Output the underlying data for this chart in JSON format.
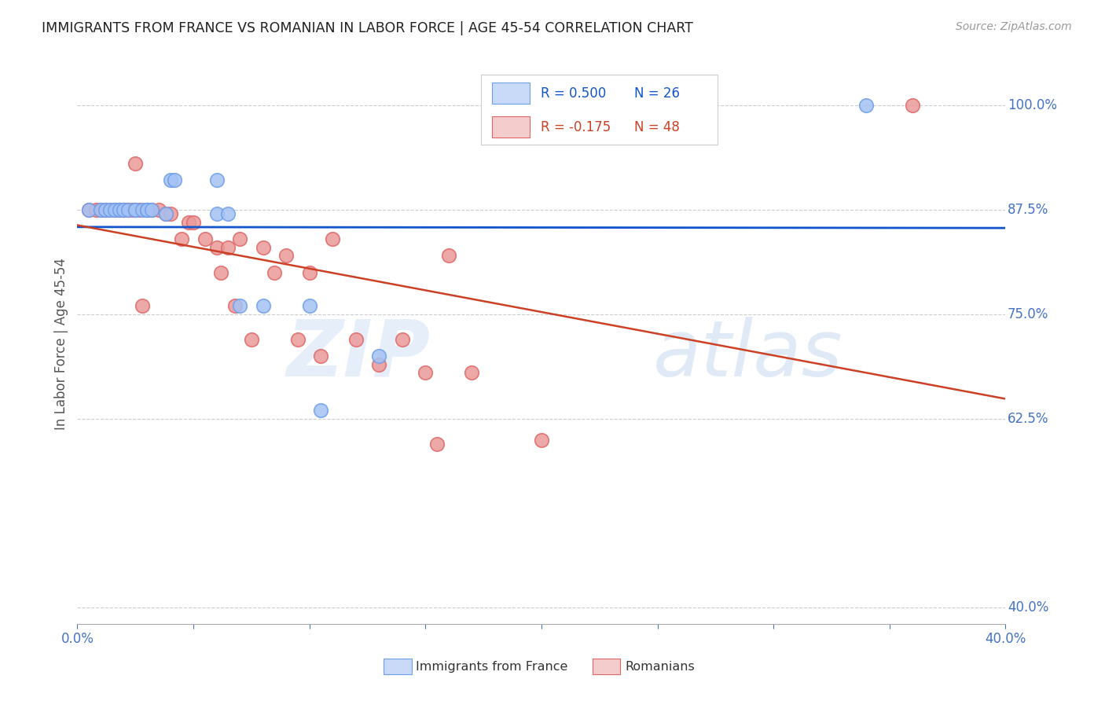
{
  "title": "IMMIGRANTS FROM FRANCE VS ROMANIAN IN LABOR FORCE | AGE 45-54 CORRELATION CHART",
  "source": "Source: ZipAtlas.com",
  "ylabel": "In Labor Force | Age 45-54",
  "xlim": [
    0.0,
    0.4
  ],
  "ylim": [
    0.38,
    1.05
  ],
  "yticks": [
    0.4,
    0.625,
    0.75,
    0.875,
    1.0
  ],
  "ytick_labels": [
    "40.0%",
    "62.5%",
    "75.0%",
    "87.5%",
    "100.0%"
  ],
  "xticks": [
    0.0,
    0.05,
    0.1,
    0.15,
    0.2,
    0.25,
    0.3,
    0.35,
    0.4
  ],
  "xtick_labels": [
    "0.0%",
    "",
    "",
    "",
    "",
    "",
    "",
    "",
    "40.0%"
  ],
  "france_color": "#a4c2f4",
  "romanian_color": "#ea9999",
  "france_edge": "#6d9eeb",
  "romanian_edge": "#e06666",
  "line_france_color": "#1155cc",
  "line_romanian_color": "#cc4125",
  "R_france": 0.5,
  "N_france": 26,
  "R_romanian": -0.175,
  "N_romanian": 48,
  "france_x": [
    0.005,
    0.01,
    0.012,
    0.014,
    0.016,
    0.018,
    0.02,
    0.022,
    0.025,
    0.025,
    0.028,
    0.03,
    0.03,
    0.032,
    0.038,
    0.04,
    0.042,
    0.06,
    0.06,
    0.065,
    0.07,
    0.08,
    0.1,
    0.105,
    0.13,
    0.34
  ],
  "france_y": [
    0.875,
    0.875,
    0.875,
    0.875,
    0.875,
    0.875,
    0.875,
    0.875,
    0.875,
    0.875,
    0.875,
    0.875,
    0.875,
    0.875,
    0.87,
    0.91,
    0.91,
    0.87,
    0.91,
    0.87,
    0.76,
    0.76,
    0.76,
    0.635,
    0.7,
    1.0
  ],
  "romanian_x": [
    0.005,
    0.008,
    0.01,
    0.012,
    0.014,
    0.016,
    0.018,
    0.018,
    0.02,
    0.02,
    0.022,
    0.022,
    0.024,
    0.025,
    0.025,
    0.027,
    0.028,
    0.03,
    0.032,
    0.035,
    0.038,
    0.04,
    0.045,
    0.048,
    0.05,
    0.055,
    0.06,
    0.062,
    0.065,
    0.068,
    0.07,
    0.075,
    0.08,
    0.085,
    0.09,
    0.095,
    0.1,
    0.105,
    0.11,
    0.12,
    0.13,
    0.14,
    0.15,
    0.155,
    0.16,
    0.17,
    0.2,
    0.36
  ],
  "romanian_y": [
    0.875,
    0.875,
    0.875,
    0.875,
    0.875,
    0.875,
    0.875,
    0.875,
    0.875,
    0.875,
    0.875,
    0.875,
    0.875,
    0.875,
    0.93,
    0.875,
    0.76,
    0.875,
    0.875,
    0.875,
    0.87,
    0.87,
    0.84,
    0.86,
    0.86,
    0.84,
    0.83,
    0.8,
    0.83,
    0.76,
    0.84,
    0.72,
    0.83,
    0.8,
    0.82,
    0.72,
    0.8,
    0.7,
    0.84,
    0.72,
    0.69,
    0.72,
    0.68,
    0.595,
    0.82,
    0.68,
    0.6,
    1.0
  ],
  "watermark_zip": "ZIP",
  "watermark_atlas": "atlas",
  "grid_color": "#cccccc",
  "title_color": "#222222",
  "axis_label_color": "#555555",
  "tick_color": "#4472c4",
  "legend_box_france_fill": "#c9daf8",
  "legend_box_romanian_fill": "#f4cccc",
  "legend_border_color": "#cccccc"
}
